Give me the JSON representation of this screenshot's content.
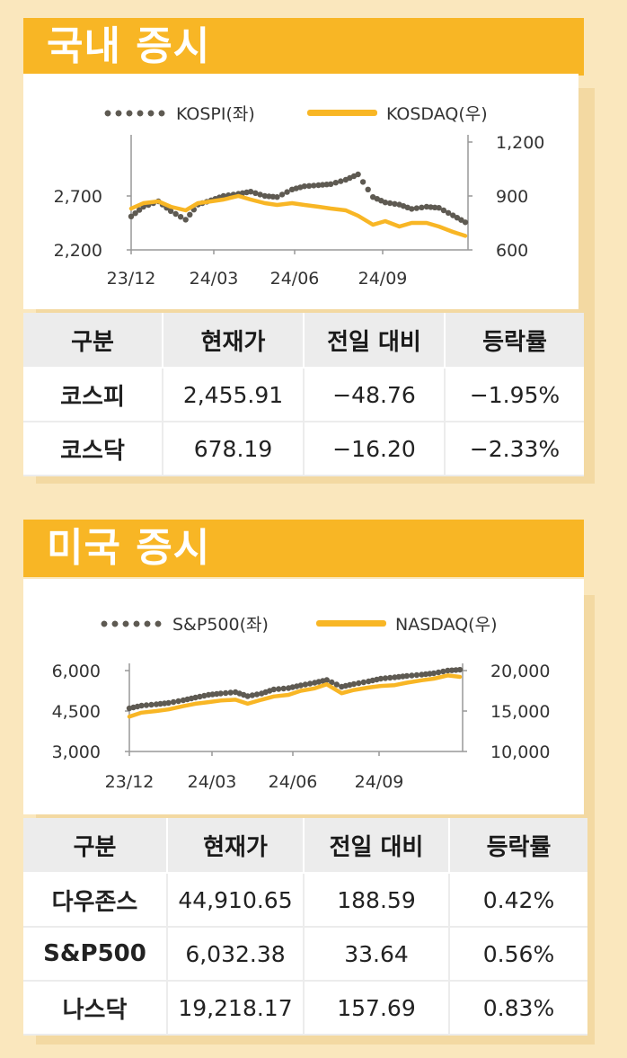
{
  "domestic": {
    "title": "국내 증시",
    "legend": {
      "left": "KOSPI(좌)",
      "right": "KOSDAQ(우)"
    },
    "table": {
      "headers": [
        "구분",
        "현재가",
        "전일 대비",
        "등락률"
      ],
      "rows": [
        [
          "코스피",
          "2,455.91",
          "−48.76",
          "−1.95%"
        ],
        [
          "코스닥",
          "678.19",
          "−16.20",
          "−2.33%"
        ]
      ]
    }
  },
  "us": {
    "title": "미국 증시",
    "legend": {
      "left": "S&P500(좌)",
      "right": "NASDAQ(우)"
    },
    "table": {
      "headers": [
        "구분",
        "현재가",
        "전일 대비",
        "등락률"
      ],
      "rows": [
        [
          "다우존스",
          "44,910.65",
          "188.59",
          "0.42%"
        ],
        [
          "S&P500",
          "6,032.38",
          "33.64",
          "0.56%"
        ],
        [
          "나스닥",
          "19,218.17",
          "157.69",
          "0.83%"
        ]
      ]
    }
  },
  "colors": {
    "dots": "#5e5a52",
    "line": "#f8b625",
    "header_bg": "#f8b625"
  },
  "chart_data": [
    {
      "type": "line",
      "x": [
        "2023-12-01",
        "2023-12-15",
        "2024-01-01",
        "2024-01-15",
        "2024-02-01",
        "2024-02-15",
        "2024-03-01",
        "2024-03-15",
        "2024-04-01",
        "2024-04-15",
        "2024-05-01",
        "2024-05-15",
        "2024-06-01",
        "2024-06-15",
        "2024-07-01",
        "2024-07-15",
        "2024-08-01",
        "2024-08-15",
        "2024-09-01",
        "2024-09-15",
        "2024-10-01",
        "2024-10-15",
        "2024-11-01",
        "2024-11-15",
        "2024-12-01",
        "2024-12-15"
      ],
      "x_ticks": [
        "23/12",
        "24/03",
        "24/06",
        "24/09"
      ],
      "series": [
        {
          "name": "KOSPI(좌)",
          "axis": "left",
          "style": "dots",
          "values": [
            2510,
            2600,
            2650,
            2560,
            2480,
            2620,
            2660,
            2700,
            2720,
            2740,
            2700,
            2690,
            2760,
            2790,
            2800,
            2810,
            2850,
            2900,
            2690,
            2640,
            2620,
            2580,
            2600,
            2590,
            2520,
            2456
          ]
        },
        {
          "name": "KOSDAQ(우)",
          "axis": "right",
          "style": "line",
          "values": [
            830,
            860,
            870,
            840,
            820,
            860,
            870,
            880,
            900,
            880,
            860,
            850,
            860,
            850,
            840,
            830,
            820,
            790,
            740,
            760,
            730,
            750,
            750,
            730,
            700,
            678
          ]
        }
      ],
      "y_left": {
        "ticks": [
          "2,200",
          "2,700"
        ],
        "range": [
          2200,
          3200
        ]
      },
      "y_right": {
        "ticks": [
          "600",
          "900",
          "1,200"
        ],
        "range": [
          600,
          1200
        ]
      }
    },
    {
      "type": "line",
      "x": [
        "2023-12-01",
        "2023-12-15",
        "2024-01-01",
        "2024-01-15",
        "2024-02-01",
        "2024-02-15",
        "2024-03-01",
        "2024-03-15",
        "2024-04-01",
        "2024-04-15",
        "2024-05-01",
        "2024-05-15",
        "2024-06-01",
        "2024-06-15",
        "2024-07-01",
        "2024-07-15",
        "2024-08-01",
        "2024-08-15",
        "2024-09-01",
        "2024-09-15",
        "2024-10-01",
        "2024-10-15",
        "2024-11-01",
        "2024-11-15",
        "2024-12-01",
        "2024-12-15"
      ],
      "x_ticks": [
        "23/12",
        "24/03",
        "24/06",
        "24/09"
      ],
      "series": [
        {
          "name": "S&P500(좌)",
          "axis": "left",
          "style": "dots",
          "values": [
            4600,
            4700,
            4750,
            4800,
            4900,
            5000,
            5100,
            5150,
            5200,
            5050,
            5150,
            5300,
            5350,
            5450,
            5550,
            5650,
            5400,
            5500,
            5600,
            5700,
            5750,
            5800,
            5850,
            5900,
            6000,
            6032
          ]
        },
        {
          "name": "NASDAQ(우)",
          "axis": "right",
          "style": "line",
          "values": [
            14300,
            14800,
            15000,
            15200,
            15600,
            15900,
            16100,
            16300,
            16400,
            15900,
            16400,
            16800,
            17000,
            17500,
            17800,
            18300,
            17200,
            17600,
            17900,
            18100,
            18200,
            18500,
            18800,
            19000,
            19400,
            19218
          ]
        }
      ],
      "y_left": {
        "ticks": [
          "3,000",
          "4,500",
          "6,000"
        ],
        "range": [
          3000,
          6000
        ]
      },
      "y_right": {
        "ticks": [
          "10,000",
          "15,000",
          "20,000"
        ],
        "range": [
          10000,
          20000
        ]
      }
    }
  ]
}
